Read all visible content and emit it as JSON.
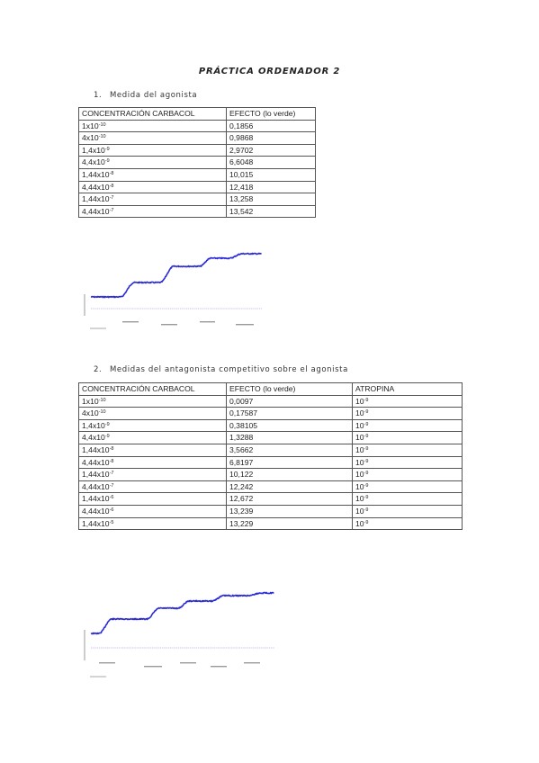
{
  "title": "PRÁCTICA ORDENADOR 2",
  "sections": [
    {
      "number": "1.",
      "heading": "Medida del agonista",
      "headers": [
        "CONCENTRACIÓN CARBACOL",
        "EFECTO (lo verde)"
      ],
      "rows": [
        {
          "conc": {
            "base": "1x10",
            "exp": "-10"
          },
          "effect": "0,1856"
        },
        {
          "conc": {
            "base": "4x10",
            "exp": "-10"
          },
          "effect": "0,9868"
        },
        {
          "conc": {
            "base": "1,4x10",
            "exp": "-9"
          },
          "effect": "2,9702"
        },
        {
          "conc": {
            "base": "4,4x10",
            "exp": "-9"
          },
          "effect": "6,6048"
        },
        {
          "conc": {
            "base": "1,44x10",
            "exp": "-8"
          },
          "effect": "10,015"
        },
        {
          "conc": {
            "base": "4,44x10",
            "exp": "-8"
          },
          "effect": "12,418"
        },
        {
          "conc": {
            "base": "1,44x10",
            "exp": "-7"
          },
          "effect": "13,258"
        },
        {
          "conc": {
            "base": "4,44x10",
            "exp": "-7"
          },
          "effect": "13,542"
        }
      ]
    },
    {
      "number": "2.",
      "heading": "Medidas del antagonista competitivo sobre el agonista",
      "headers": [
        "CONCENTRACIÓN CARBACOL",
        "EFECTO (lo verde)",
        "ATROPINA"
      ],
      "rows": [
        {
          "conc": {
            "base": "1x10",
            "exp": "-10"
          },
          "effect": "0,0097",
          "atropina": {
            "base": "10",
            "exp": "-9"
          }
        },
        {
          "conc": {
            "base": "4x10",
            "exp": "-10"
          },
          "effect": "0,17587",
          "atropina": {
            "base": "10",
            "exp": "-9"
          }
        },
        {
          "conc": {
            "base": "1,4x10",
            "exp": "-9"
          },
          "effect": "0,38105",
          "atropina": {
            "base": "10",
            "exp": "-9"
          }
        },
        {
          "conc": {
            "base": "4,4x10",
            "exp": "-9"
          },
          "effect": "1,3288",
          "atropina": {
            "base": "10",
            "exp": "-9"
          }
        },
        {
          "conc": {
            "base": "1,44x10",
            "exp": "-8"
          },
          "effect": "3,5662",
          "atropina": {
            "base": "10",
            "exp": "-9"
          }
        },
        {
          "conc": {
            "base": "4,44x10",
            "exp": "-8"
          },
          "effect": "6,8197",
          "atropina": {
            "base": "10",
            "exp": "-9"
          }
        },
        {
          "conc": {
            "base": "1,44x10",
            "exp": "-7"
          },
          "effect": "10,122",
          "atropina": {
            "base": "10",
            "exp": "-9"
          }
        },
        {
          "conc": {
            "base": "4,44x10",
            "exp": "-7"
          },
          "effect": "12,242",
          "atropina": {
            "base": "10",
            "exp": "-9"
          }
        },
        {
          "conc": {
            "base": "1,44x10",
            "exp": "-6"
          },
          "effect": "12,672",
          "atropina": {
            "base": "10",
            "exp": "-9"
          }
        },
        {
          "conc": {
            "base": "4,44x10",
            "exp": "-6"
          },
          "effect": "13,239",
          "atropina": {
            "base": "10",
            "exp": "-9"
          }
        },
        {
          "conc": {
            "base": "1,44x10",
            "exp": "-5"
          },
          "effect": "13,229",
          "atropina": {
            "base": "10",
            "exp": "-9"
          }
        }
      ]
    }
  ],
  "trace_color": "#2b2bd8",
  "baseline_color": "#7b7be0"
}
